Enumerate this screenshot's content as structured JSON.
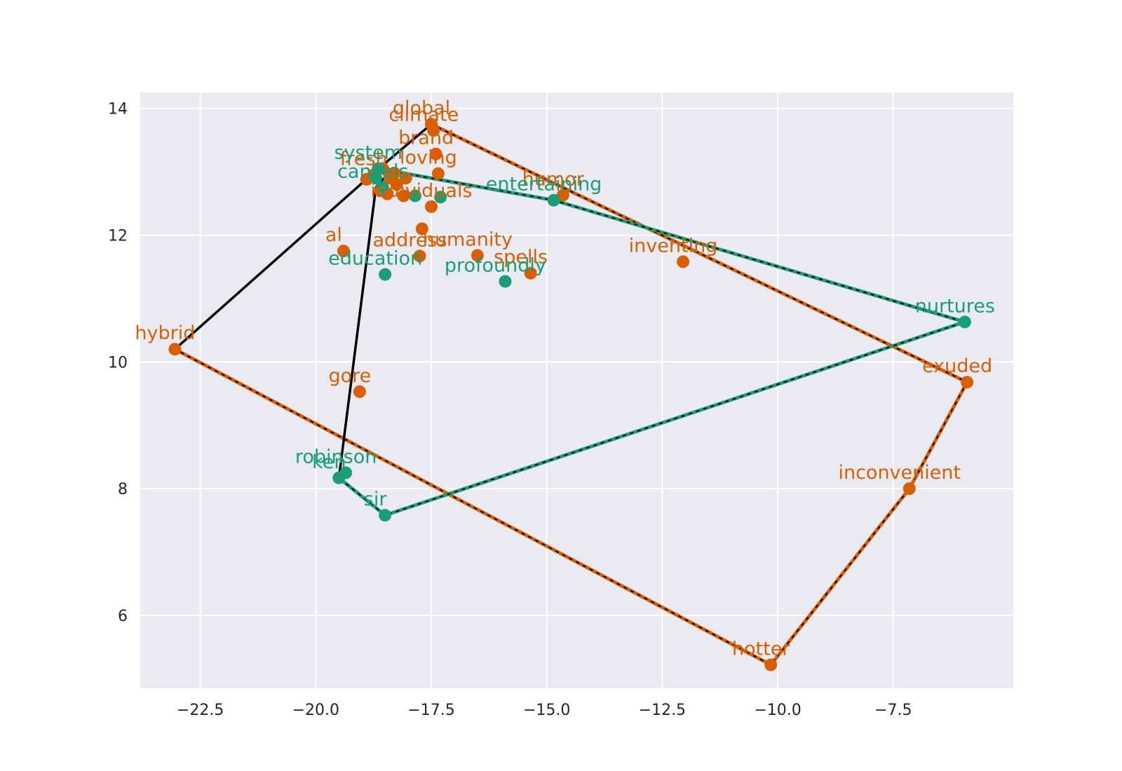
{
  "chart_data": {
    "type": "scatter",
    "title": "",
    "xlabel": "",
    "ylabel": "",
    "xlim": [
      -23.8,
      -4.9
    ],
    "ylim": [
      4.85,
      14.25
    ],
    "xticks": [
      -22.5,
      -20.0,
      -17.5,
      -15.0,
      -12.5,
      -10.0,
      -7.5
    ],
    "xtick_labels": [
      "−22.5",
      "−20.0",
      "−17.5",
      "−15.0",
      "−12.5",
      "−10.0",
      "−7.5"
    ],
    "yticks": [
      6,
      8,
      10,
      12,
      14
    ],
    "ytick_labels": [
      "6",
      "8",
      "10",
      "12",
      "14"
    ],
    "grid": true,
    "colors": {
      "orange": "#d95f02",
      "green": "#1b9e77",
      "black": "#000000",
      "background": "#eaeaf2"
    },
    "series": [
      {
        "color": "orange",
        "points": [
          {
            "label": "global",
            "x": -17.5,
            "y": 13.75
          },
          {
            "label": "climate",
            "x": -17.45,
            "y": 13.65
          },
          {
            "label": "brand",
            "x": -17.4,
            "y": 13.28
          },
          {
            "label": "loving",
            "x": -17.35,
            "y": 12.97
          },
          {
            "label": "humor",
            "x": -14.65,
            "y": 12.63
          },
          {
            "label": "individuals",
            "x": -17.5,
            "y": 12.45
          },
          {
            "label": "al",
            "x": -19.4,
            "y": 11.75
          },
          {
            "label": "address",
            "x": -17.75,
            "y": 11.67
          },
          {
            "label": "humanity",
            "x": -16.5,
            "y": 11.68
          },
          {
            "label": "spells",
            "x": -15.35,
            "y": 11.4
          },
          {
            "label": "inventing",
            "x": -12.05,
            "y": 11.58
          },
          {
            "label": "hybrid",
            "x": -23.05,
            "y": 10.2
          },
          {
            "label": "gore",
            "x": -19.05,
            "y": 9.53
          },
          {
            "label": "exuded",
            "x": -5.9,
            "y": 9.68
          },
          {
            "label": "inconvenient",
            "x": -7.15,
            "y": 8.0
          },
          {
            "label": "hotter",
            "x": -10.15,
            "y": 5.22
          },
          {
            "label": "fresh",
            "x": -18.75,
            "y": 12.95
          },
          {
            "label": "",
            "x": -18.55,
            "y": 13.05
          },
          {
            "label": "",
            "x": -18.4,
            "y": 12.9
          },
          {
            "label": "",
            "x": -18.25,
            "y": 12.8
          },
          {
            "label": "",
            "x": -18.6,
            "y": 12.7
          },
          {
            "label": "",
            "x": -18.45,
            "y": 12.65
          },
          {
            "label": "",
            "x": -18.1,
            "y": 12.62
          },
          {
            "label": "",
            "x": -18.3,
            "y": 12.98
          },
          {
            "label": "",
            "x": -18.05,
            "y": 12.9
          },
          {
            "label": "",
            "x": -17.7,
            "y": 12.1
          },
          {
            "label": "",
            "x": -18.9,
            "y": 12.88
          }
        ]
      },
      {
        "color": "green",
        "points": [
          {
            "label": "system",
            "x": -18.65,
            "y": 13.05
          },
          {
            "label": "entertaining",
            "x": -14.85,
            "y": 12.55
          },
          {
            "label": "education",
            "x": -18.5,
            "y": 11.38
          },
          {
            "label": "profoundly",
            "x": -15.9,
            "y": 11.27
          },
          {
            "label": "nurtures",
            "x": -5.95,
            "y": 10.63
          },
          {
            "label": "robinson",
            "x": -19.35,
            "y": 8.25
          },
          {
            "label": "ken",
            "x": -19.5,
            "y": 8.17
          },
          {
            "label": "sir",
            "x": -18.5,
            "y": 7.58
          },
          {
            "label": "cancels",
            "x": -18.55,
            "y": 12.75
          },
          {
            "label": "",
            "x": -17.85,
            "y": 12.62
          },
          {
            "label": "",
            "x": -17.3,
            "y": 12.6
          },
          {
            "label": "",
            "x": -18.7,
            "y": 12.9
          }
        ]
      }
    ],
    "paths": [
      {
        "style": "orange-dashed",
        "points": [
          [
            -17.5,
            13.75
          ],
          [
            -5.9,
            9.68
          ],
          [
            -7.15,
            8.0
          ],
          [
            -10.15,
            5.22
          ],
          [
            -23.05,
            10.2
          ]
        ]
      },
      {
        "style": "green-dashed",
        "points": [
          [
            -18.65,
            13.05
          ],
          [
            -14.85,
            12.55
          ],
          [
            -5.95,
            10.63
          ],
          [
            -18.5,
            7.58
          ],
          [
            -19.5,
            8.17
          ],
          [
            -19.35,
            8.25
          ]
        ]
      },
      {
        "style": "black",
        "points": [
          [
            -23.05,
            10.2
          ],
          [
            -18.8,
            12.95
          ],
          [
            -17.5,
            13.75
          ]
        ]
      },
      {
        "style": "black",
        "points": [
          [
            -19.5,
            8.17
          ],
          [
            -18.7,
            12.75
          ],
          [
            -18.4,
            13.0
          ]
        ]
      }
    ]
  }
}
